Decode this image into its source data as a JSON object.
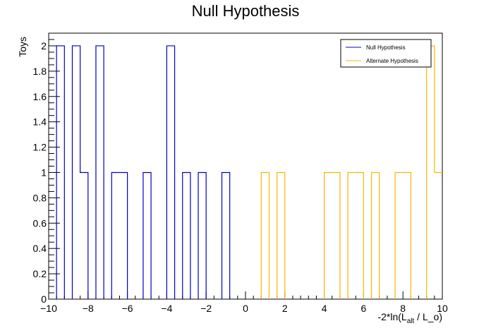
{
  "chart_data": {
    "type": "histogram",
    "title": "Null Hypothesis",
    "ylabel": "Toys",
    "xlabel": {
      "prefix": "-2*ln(L",
      "sub1": "alt",
      "middle": " / L",
      "sub2": "_o",
      "suffix": ")"
    },
    "xlim": [
      -10,
      10
    ],
    "ylim": [
      0,
      2.1
    ],
    "x_ticks": [
      -10,
      -8,
      -6,
      -4,
      -2,
      0,
      2,
      4,
      6,
      8,
      10
    ],
    "x_tick_labels": [
      "−10",
      "−8",
      "−6",
      "−4",
      "−2",
      "0",
      "2",
      "4",
      "6",
      "8",
      "10"
    ],
    "y_ticks": [
      0,
      0.2,
      0.4,
      0.6,
      0.8,
      1,
      1.2,
      1.4,
      1.6,
      1.8,
      2
    ],
    "y_tick_labels": [
      "0",
      "0.2",
      "0.4",
      "0.6",
      "0.8",
      "1",
      "1.2",
      "1.4",
      "1.6",
      "1.8",
      "2"
    ],
    "grid": false,
    "legend_position": "top-right",
    "series": [
      {
        "name": "Null Hypothesis",
        "color": "#0000cc",
        "bins": [
          {
            "x0": -9.6,
            "x1": -9.2,
            "count": 2
          },
          {
            "x0": -8.8,
            "x1": -8.4,
            "count": 2
          },
          {
            "x0": -8.4,
            "x1": -8.0,
            "count": 1
          },
          {
            "x0": -7.6,
            "x1": -7.2,
            "count": 2
          },
          {
            "x0": -6.8,
            "x1": -6.0,
            "count": 1
          },
          {
            "x0": -5.2,
            "x1": -4.8,
            "count": 1
          },
          {
            "x0": -4.0,
            "x1": -3.6,
            "count": 2
          },
          {
            "x0": -3.2,
            "x1": -2.8,
            "count": 1
          },
          {
            "x0": -2.4,
            "x1": -2.0,
            "count": 1
          },
          {
            "x0": -1.2,
            "x1": -0.8,
            "count": 1
          }
        ]
      },
      {
        "name": "Alternate Hypothesis",
        "color": "#ffb400",
        "bins": [
          {
            "x0": 0.8,
            "x1": 1.2,
            "count": 1
          },
          {
            "x0": 1.6,
            "x1": 2.0,
            "count": 1
          },
          {
            "x0": 4.0,
            "x1": 4.8,
            "count": 1
          },
          {
            "x0": 5.2,
            "x1": 6.0,
            "count": 1
          },
          {
            "x0": 6.4,
            "x1": 6.8,
            "count": 1
          },
          {
            "x0": 7.6,
            "x1": 8.4,
            "count": 1
          },
          {
            "x0": 9.2,
            "x1": 9.6,
            "count": 2
          },
          {
            "x0": 9.6,
            "x1": 10.0,
            "count": 1
          }
        ]
      }
    ]
  }
}
